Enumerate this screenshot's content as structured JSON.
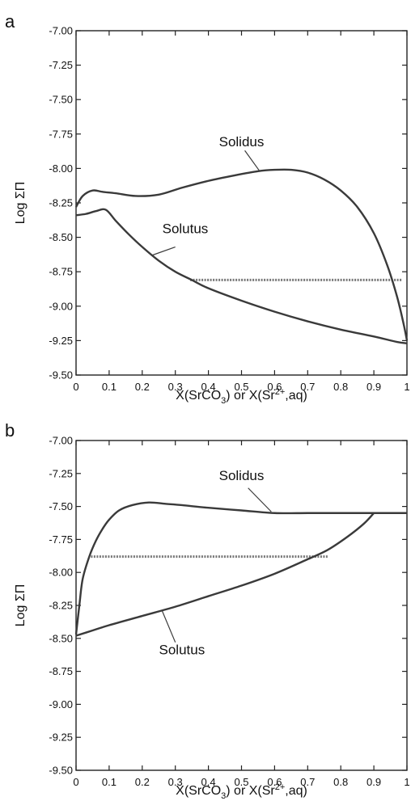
{
  "chart_data": [
    {
      "panel": "a",
      "type": "line",
      "xlabel_parts": [
        "X(SrCO",
        "3",
        ") or X(Sr",
        "2+",
        ",aq)"
      ],
      "ylabel": "Log ΣΠ",
      "xlim": [
        0,
        1
      ],
      "ylim": [
        -9.5,
        -7.0
      ],
      "x_ticks": [
        0,
        0.1,
        0.2,
        0.3,
        0.4,
        0.5,
        0.6,
        0.7,
        0.8,
        0.9,
        1
      ],
      "x_tick_labels": [
        "0",
        "0.1",
        "0.2",
        "0.3",
        "0.4",
        "0.5",
        "0.6",
        "0.7",
        "0.8",
        "0.9",
        "1"
      ],
      "y_ticks": [
        -7.0,
        -7.25,
        -7.5,
        -7.75,
        -8.0,
        -8.25,
        -8.5,
        -8.75,
        -9.0,
        -9.25,
        -9.5
      ],
      "y_tick_labels": [
        "-7.00",
        "-7.25",
        "-7.50",
        "-7.75",
        "-8.00",
        "-8.25",
        "-8.50",
        "-8.75",
        "-9.00",
        "-9.25",
        "-9.50"
      ],
      "series": [
        {
          "name": "Solidus",
          "x": [
            0,
            0.02,
            0.05,
            0.08,
            0.12,
            0.18,
            0.25,
            0.32,
            0.4,
            0.48,
            0.55,
            0.6,
            0.65,
            0.7,
            0.75,
            0.8,
            0.85,
            0.9,
            0.94,
            0.97,
            0.99,
            1.0
          ],
          "y": [
            -8.28,
            -8.2,
            -8.16,
            -8.17,
            -8.18,
            -8.2,
            -8.19,
            -8.14,
            -8.09,
            -8.05,
            -8.02,
            -8.01,
            -8.01,
            -8.03,
            -8.08,
            -8.16,
            -8.28,
            -8.47,
            -8.7,
            -8.93,
            -9.13,
            -9.25
          ]
        },
        {
          "name": "Solutus",
          "x": [
            0,
            0.03,
            0.06,
            0.09,
            0.12,
            0.16,
            0.2,
            0.25,
            0.3,
            0.35,
            0.4,
            0.5,
            0.6,
            0.7,
            0.8,
            0.9,
            0.97,
            1.0
          ],
          "y": [
            -8.34,
            -8.33,
            -8.31,
            -8.3,
            -8.38,
            -8.48,
            -8.57,
            -8.67,
            -8.75,
            -8.81,
            -8.87,
            -8.96,
            -9.04,
            -9.11,
            -9.17,
            -9.22,
            -9.26,
            -9.27
          ]
        }
      ],
      "tie_lines": [
        {
          "x": [
            0.345,
            0.985
          ],
          "y": [
            -8.81,
            -8.81
          ]
        }
      ],
      "annotations": [
        {
          "text": "Solidus",
          "x": 0.5,
          "y": -7.84,
          "leader_from": [
            0.51,
            -7.87
          ],
          "leader_to": [
            0.555,
            -8.02
          ]
        },
        {
          "text": "Solutus",
          "x": 0.33,
          "y": -8.47,
          "leader_from": [
            0.3,
            -8.57
          ],
          "leader_to": [
            0.23,
            -8.63
          ]
        }
      ]
    },
    {
      "panel": "b",
      "type": "line",
      "xlabel_parts": [
        "X(SrCO",
        "3",
        ") or X(Sr",
        "2+",
        ",aq)"
      ],
      "ylabel": "Log ΣΠ",
      "xlim": [
        0,
        1
      ],
      "ylim": [
        -9.5,
        -7.0
      ],
      "x_ticks": [
        0,
        0.1,
        0.2,
        0.3,
        0.4,
        0.5,
        0.6,
        0.7,
        0.8,
        0.9,
        1
      ],
      "x_tick_labels": [
        "0",
        "0.1",
        "0.2",
        "0.3",
        "0.4",
        "0.5",
        "0.6",
        "0.7",
        "0.8",
        "0.9",
        "1"
      ],
      "y_ticks": [
        -7.0,
        -7.25,
        -7.5,
        -7.75,
        -8.0,
        -8.25,
        -8.5,
        -8.75,
        -9.0,
        -9.25,
        -9.5
      ],
      "y_tick_labels": [
        "-7.00",
        "-7.25",
        "-7.50",
        "-7.75",
        "-8.00",
        "-8.25",
        "-8.50",
        "-8.75",
        "-9.00",
        "-9.25",
        "-9.50"
      ],
      "series": [
        {
          "name": "Solidus",
          "x": [
            0,
            0.01,
            0.02,
            0.04,
            0.06,
            0.08,
            0.1,
            0.13,
            0.17,
            0.22,
            0.27,
            0.32,
            0.4,
            0.5,
            0.6,
            0.7,
            0.8,
            0.9,
            1.0
          ],
          "y": [
            -8.47,
            -8.25,
            -8.05,
            -7.88,
            -7.76,
            -7.67,
            -7.6,
            -7.53,
            -7.49,
            -7.47,
            -7.48,
            -7.49,
            -7.51,
            -7.53,
            -7.55,
            -7.55,
            -7.55,
            -7.55,
            -7.55
          ]
        },
        {
          "name": "Solutus",
          "x": [
            0,
            0.05,
            0.1,
            0.2,
            0.3,
            0.4,
            0.5,
            0.6,
            0.7,
            0.76,
            0.82,
            0.87,
            0.9
          ],
          "y": [
            -8.48,
            -8.44,
            -8.4,
            -8.33,
            -8.26,
            -8.18,
            -8.1,
            -8.01,
            -7.9,
            -7.83,
            -7.73,
            -7.63,
            -7.55
          ]
        }
      ],
      "tie_lines": [
        {
          "x": [
            0.045,
            0.76
          ],
          "y": [
            -7.88,
            -7.88
          ]
        }
      ],
      "annotations": [
        {
          "text": "Solidus",
          "x": 0.5,
          "y": -7.3,
          "leader_from": [
            0.52,
            -7.36
          ],
          "leader_to": [
            0.59,
            -7.54
          ]
        },
        {
          "text": "Solutus",
          "x": 0.32,
          "y": -8.62,
          "leader_from": [
            0.3,
            -8.53
          ],
          "leader_to": [
            0.26,
            -8.29
          ]
        }
      ]
    }
  ]
}
